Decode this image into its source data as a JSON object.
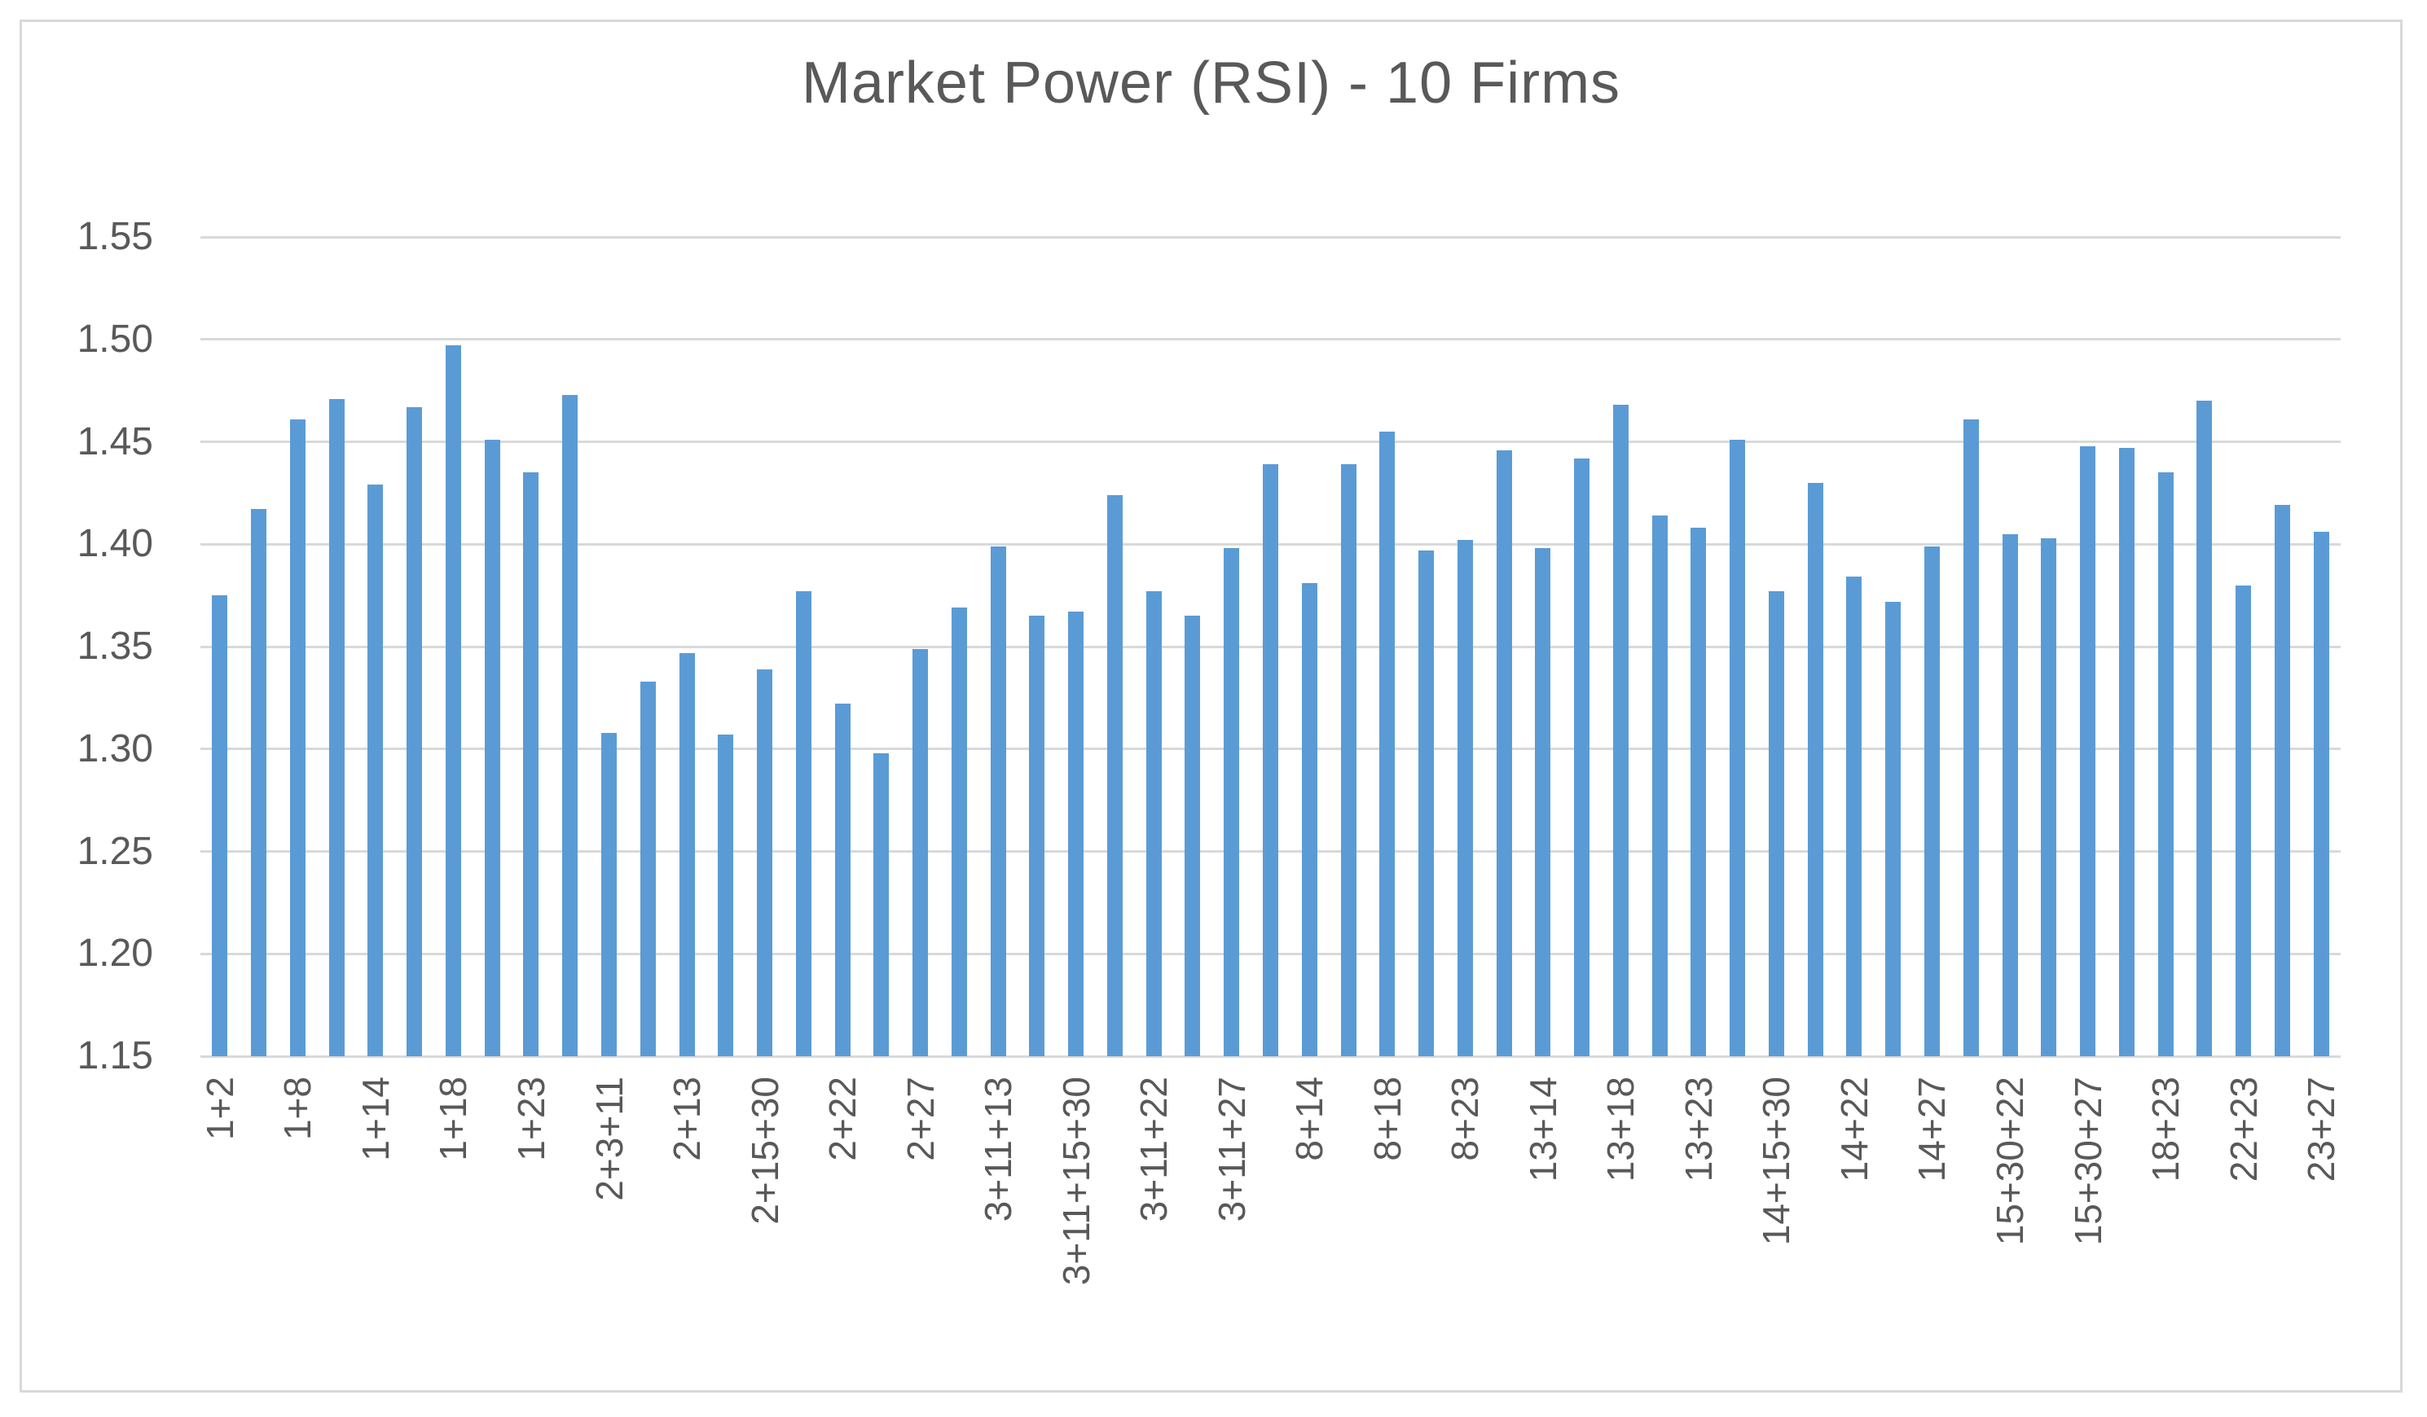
{
  "title": "Market Power (RSI) - 10 Firms",
  "colors": {
    "bar": "#5B9BD5",
    "gridline": "#D9D9D9",
    "frame_border": "#D9D9D9",
    "text": "#595959"
  },
  "chart_data": {
    "type": "bar",
    "title": "Market Power (RSI) - 10 Firms",
    "xlabel": "",
    "ylabel": "",
    "ylim": [
      1.15,
      1.55
    ],
    "ytick_step": 0.05,
    "yticks": [
      "1.55",
      "1.50",
      "1.45",
      "1.40",
      "1.35",
      "1.30",
      "1.25",
      "1.20",
      "1.15"
    ],
    "grid": true,
    "legend": false,
    "bar_color": "#5B9BD5",
    "categories": [
      "1+2",
      "",
      "1+8",
      "",
      "1+14",
      "",
      "1+18",
      "",
      "1+23",
      "",
      "2+3+11",
      "",
      "2+13",
      "",
      "2+15+30",
      "",
      "2+22",
      "",
      "2+27",
      "",
      "3+11+13",
      "",
      "3+11+15+30",
      "",
      "3+11+22",
      "",
      "3+11+27",
      "",
      "8+14",
      "",
      "8+18",
      "",
      "8+23",
      "",
      "13+14",
      "",
      "13+18",
      "",
      "13+23",
      "",
      "14+15+30",
      "",
      "14+22",
      "",
      "14+27",
      "",
      "15+30+22",
      "",
      "15+30+27",
      "",
      "18+23",
      "",
      "22+23",
      "",
      "23+27"
    ],
    "values": [
      1.375,
      1.417,
      1.461,
      1.471,
      1.429,
      1.467,
      1.497,
      1.451,
      1.435,
      1.473,
      1.308,
      1.333,
      1.347,
      1.307,
      1.339,
      1.377,
      1.322,
      1.298,
      1.349,
      1.369,
      1.399,
      1.365,
      1.367,
      1.424,
      1.377,
      1.365,
      1.398,
      1.439,
      1.381,
      1.439,
      1.455,
      1.397,
      1.402,
      1.446,
      1.398,
      1.442,
      1.468,
      1.414,
      1.408,
      1.451,
      1.377,
      1.43,
      1.384,
      1.372,
      1.399,
      1.461,
      1.405,
      1.403,
      1.448,
      1.447,
      1.435,
      1.47,
      1.38,
      1.419,
      1.406
    ]
  }
}
